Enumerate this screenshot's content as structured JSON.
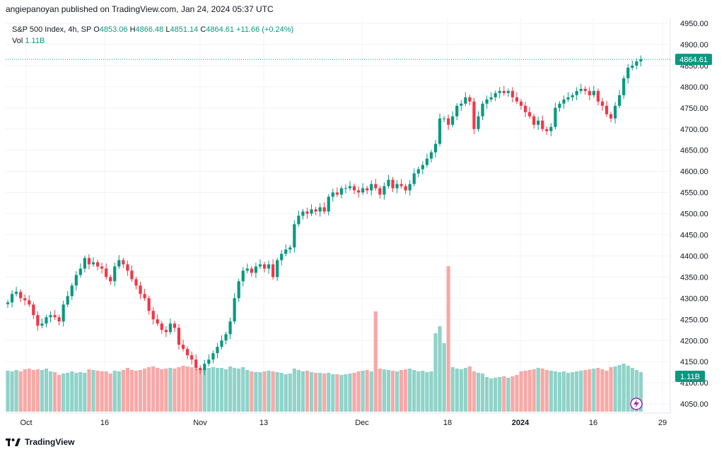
{
  "header": {
    "publisher_line": "angiepanoyan published on TradingView.com, Jan 24, 2024 05:37 UTC"
  },
  "legend": {
    "symbol": "S&P 500 Index, 4h, SP",
    "open_label": "O",
    "open": "4853.06",
    "high_label": "H",
    "high": "4866.48",
    "low_label": "L",
    "low": "4851.14",
    "close_label": "C",
    "close": "4864.61",
    "change": "+11.66 (+0.24%)",
    "vol_label": "Vol",
    "vol_value": "1.11B"
  },
  "footer": {
    "brand": "TradingView"
  },
  "colors": {
    "up": "#089981",
    "down": "#f23645",
    "vol_up": "#8fd3c9",
    "vol_down": "#f7a9a7",
    "grid": "#f0f3fa",
    "price_line": "#089981"
  },
  "chart_data": {
    "type": "candlestick",
    "price_tick_labels": [
      "4950.00",
      "4900.00",
      "4850.00",
      "4800.00",
      "4750.00",
      "4700.00",
      "4650.00",
      "4600.00",
      "4550.00",
      "4500.00",
      "4450.00",
      "4400.00",
      "4350.00",
      "4300.00",
      "4250.00",
      "4200.00",
      "4150.00",
      "4100.00",
      "4050.00"
    ],
    "ylim": [
      4030,
      4960
    ],
    "x_tick_labels": [
      "Oct",
      "16",
      "Nov",
      "13",
      "Dec",
      "18",
      "2024",
      "16",
      "29"
    ],
    "last_price_label": "4864.61",
    "last_volume_label": "1.11B",
    "closes": [
      4290,
      4310,
      4315,
      4300,
      4295,
      4285,
      4260,
      4235,
      4240,
      4255,
      4260,
      4255,
      4245,
      4285,
      4305,
      4330,
      4355,
      4370,
      4395,
      4380,
      4385,
      4375,
      4370,
      4350,
      4340,
      4375,
      4390,
      4380,
      4365,
      4345,
      4330,
      4310,
      4300,
      4270,
      4250,
      4240,
      4225,
      4220,
      4240,
      4230,
      4190,
      4180,
      4165,
      4155,
      4135,
      4130,
      4145,
      4155,
      4170,
      4185,
      4200,
      4215,
      4245,
      4300,
      4340,
      4365,
      4370,
      4360,
      4375,
      4380,
      4370,
      4380,
      4350,
      4390,
      4405,
      4415,
      4420,
      4475,
      4495,
      4505,
      4500,
      4510,
      4505,
      4515,
      4505,
      4540,
      4550,
      4545,
      4560,
      4560,
      4565,
      4555,
      4550,
      4560,
      4555,
      4570,
      4560,
      4545,
      4565,
      4580,
      4560,
      4570,
      4565,
      4555,
      4570,
      4595,
      4605,
      4615,
      4630,
      4645,
      4665,
      4725,
      4725,
      4710,
      4730,
      4755,
      4760,
      4775,
      4765,
      4700,
      4730,
      4760,
      4770,
      4775,
      4785,
      4790,
      4785,
      4790,
      4775,
      4765,
      4755,
      4740,
      4730,
      4710,
      4720,
      4700,
      4695,
      4705,
      4750,
      4760,
      4770,
      4775,
      4780,
      4790,
      4795,
      4790,
      4780,
      4790,
      4765,
      4755,
      4735,
      4725,
      4755,
      4780,
      4820,
      4845,
      4850,
      4860,
      4865
    ],
    "volumes": [
      1.13,
      1.12,
      1.14,
      1.12,
      1.15,
      1.16,
      1.14,
      1.15,
      1.14,
      1.16,
      1.12,
      1.11,
      1.07,
      1.09,
      1.1,
      1.12,
      1.1,
      1.11,
      1.1,
      1.15,
      1.14,
      1.13,
      1.12,
      1.12,
      1.09,
      1.13,
      1.12,
      1.14,
      1.17,
      1.14,
      1.13,
      1.14,
      1.16,
      1.18,
      1.19,
      1.17,
      1.15,
      1.16,
      1.17,
      1.16,
      1.18,
      1.2,
      1.19,
      1.18,
      1.16,
      1.15,
      1.16,
      1.17,
      1.18,
      1.17,
      1.17,
      1.15,
      1.19,
      1.17,
      1.16,
      1.18,
      1.14,
      1.12,
      1.11,
      1.11,
      1.12,
      1.13,
      1.12,
      1.11,
      1.1,
      1.08,
      1.09,
      1.16,
      1.14,
      1.12,
      1.13,
      1.11,
      1.1,
      1.1,
      1.09,
      1.1,
      1.08,
      1.08,
      1.07,
      1.08,
      1.09,
      1.1,
      1.12,
      1.13,
      1.14,
      1.12,
      1.97,
      1.16,
      1.15,
      1.14,
      1.13,
      1.12,
      1.14,
      1.15,
      1.16,
      1.14,
      1.12,
      1.13,
      1.11,
      1.12,
      1.66,
      1.76,
      1.52,
      2.61,
      1.18,
      1.16,
      1.15,
      1.17,
      1.19,
      1.12,
      1.1,
      1.09,
      1.04,
      1.02,
      1.03,
      1.04,
      1.05,
      1.03,
      1.05,
      1.07,
      1.12,
      1.13,
      1.14,
      1.15,
      1.17,
      1.16,
      1.14,
      1.13,
      1.12,
      1.11,
      1.12,
      1.1,
      1.11,
      1.12,
      1.13,
      1.14,
      1.15,
      1.16,
      1.17,
      1.15,
      1.13,
      1.18,
      1.19,
      1.21,
      1.23,
      1.2,
      1.17,
      1.14,
      1.11
    ],
    "volume_note_units": "billions"
  }
}
